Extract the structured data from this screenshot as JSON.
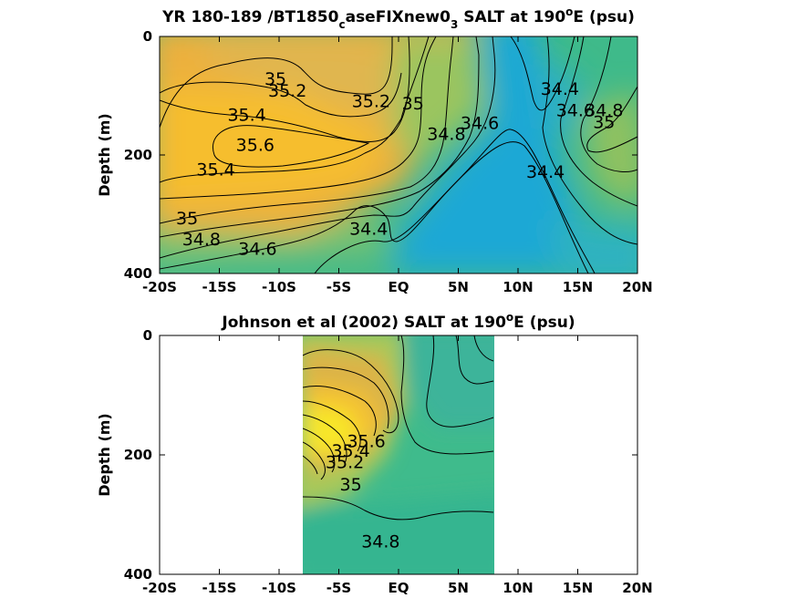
{
  "chart_data": [
    {
      "type": "heatmap",
      "title_main": "YR 180-189 /BT1850",
      "title_sub1": "c",
      "title_mid": "aseFIXnew0",
      "title_sub2": "3",
      "title_rest": " SALT at 190",
      "title_sup": "o",
      "title_end": "E (psu)",
      "ylabel": "Depth (m)",
      "x_ticks": [
        "-20S",
        "-15S",
        "-10S",
        "-5S",
        "EQ",
        "5N",
        "10N",
        "15N",
        "20N"
      ],
      "x_tick_values": [
        -20,
        -15,
        -10,
        -5,
        0,
        5,
        10,
        15,
        20
      ],
      "y_ticks": [
        "0",
        "200",
        "400"
      ],
      "y_tick_values": [
        0,
        200,
        400
      ],
      "xlim": [
        -20,
        20
      ],
      "ylim": [
        0,
        400
      ],
      "y_reversed": true,
      "contour_labels": [
        {
          "text": "35",
          "lat": -10.3,
          "depth": 72
        },
        {
          "text": "35.2",
          "lat": -9.3,
          "depth": 92
        },
        {
          "text": "35.4",
          "lat": -12.7,
          "depth": 133
        },
        {
          "text": "35.6",
          "lat": -12.0,
          "depth": 184
        },
        {
          "text": "35.4",
          "lat": -15.3,
          "depth": 225
        },
        {
          "text": "35.2",
          "lat": -2.3,
          "depth": 110
        },
        {
          "text": "35",
          "lat": 1.2,
          "depth": 114
        },
        {
          "text": "34.8",
          "lat": 4.0,
          "depth": 165
        },
        {
          "text": "34.6",
          "lat": 6.8,
          "depth": 147
        },
        {
          "text": "34.4",
          "lat": 13.5,
          "depth": 89
        },
        {
          "text": "34.6",
          "lat": 14.8,
          "depth": 125
        },
        {
          "text": "34.8",
          "lat": 17.2,
          "depth": 125
        },
        {
          "text": "35",
          "lat": 17.2,
          "depth": 145
        },
        {
          "text": "34.4",
          "lat": 12.3,
          "depth": 229
        },
        {
          "text": "35",
          "lat": -17.7,
          "depth": 308
        },
        {
          "text": "34.8",
          "lat": -16.5,
          "depth": 343
        },
        {
          "text": "34.6",
          "lat": -11.8,
          "depth": 359
        },
        {
          "text": "34.4",
          "lat": -2.5,
          "depth": 325
        }
      ]
    },
    {
      "type": "heatmap",
      "title_main": "Johnson et al (2002) SALT at 190",
      "title_sup": "o",
      "title_end": "E (psu)",
      "ylabel": "Depth (m)",
      "x_ticks": [
        "-20S",
        "-15S",
        "-10S",
        "-5S",
        "EQ",
        "5N",
        "10N",
        "15N",
        "20N"
      ],
      "x_tick_values": [
        -20,
        -15,
        -10,
        -5,
        0,
        5,
        10,
        15,
        20
      ],
      "y_ticks": [
        "0",
        "200",
        "400"
      ],
      "y_tick_values": [
        0,
        200,
        400
      ],
      "xlim": [
        -20,
        20
      ],
      "ylim": [
        0,
        400
      ],
      "y_reversed": true,
      "data_lat_range": [
        -8,
        8
      ],
      "contour_labels": [
        {
          "text": "35",
          "lat": -4.0,
          "depth": 250
        },
        {
          "text": "34.8",
          "lat": -1.5,
          "depth": 346
        },
        {
          "text": "35.6",
          "lat": -2.7,
          "depth": 178
        },
        {
          "text": "35.4",
          "lat": -4.0,
          "depth": 194
        },
        {
          "text": "35.2",
          "lat": -4.5,
          "depth": 213
        }
      ]
    }
  ]
}
